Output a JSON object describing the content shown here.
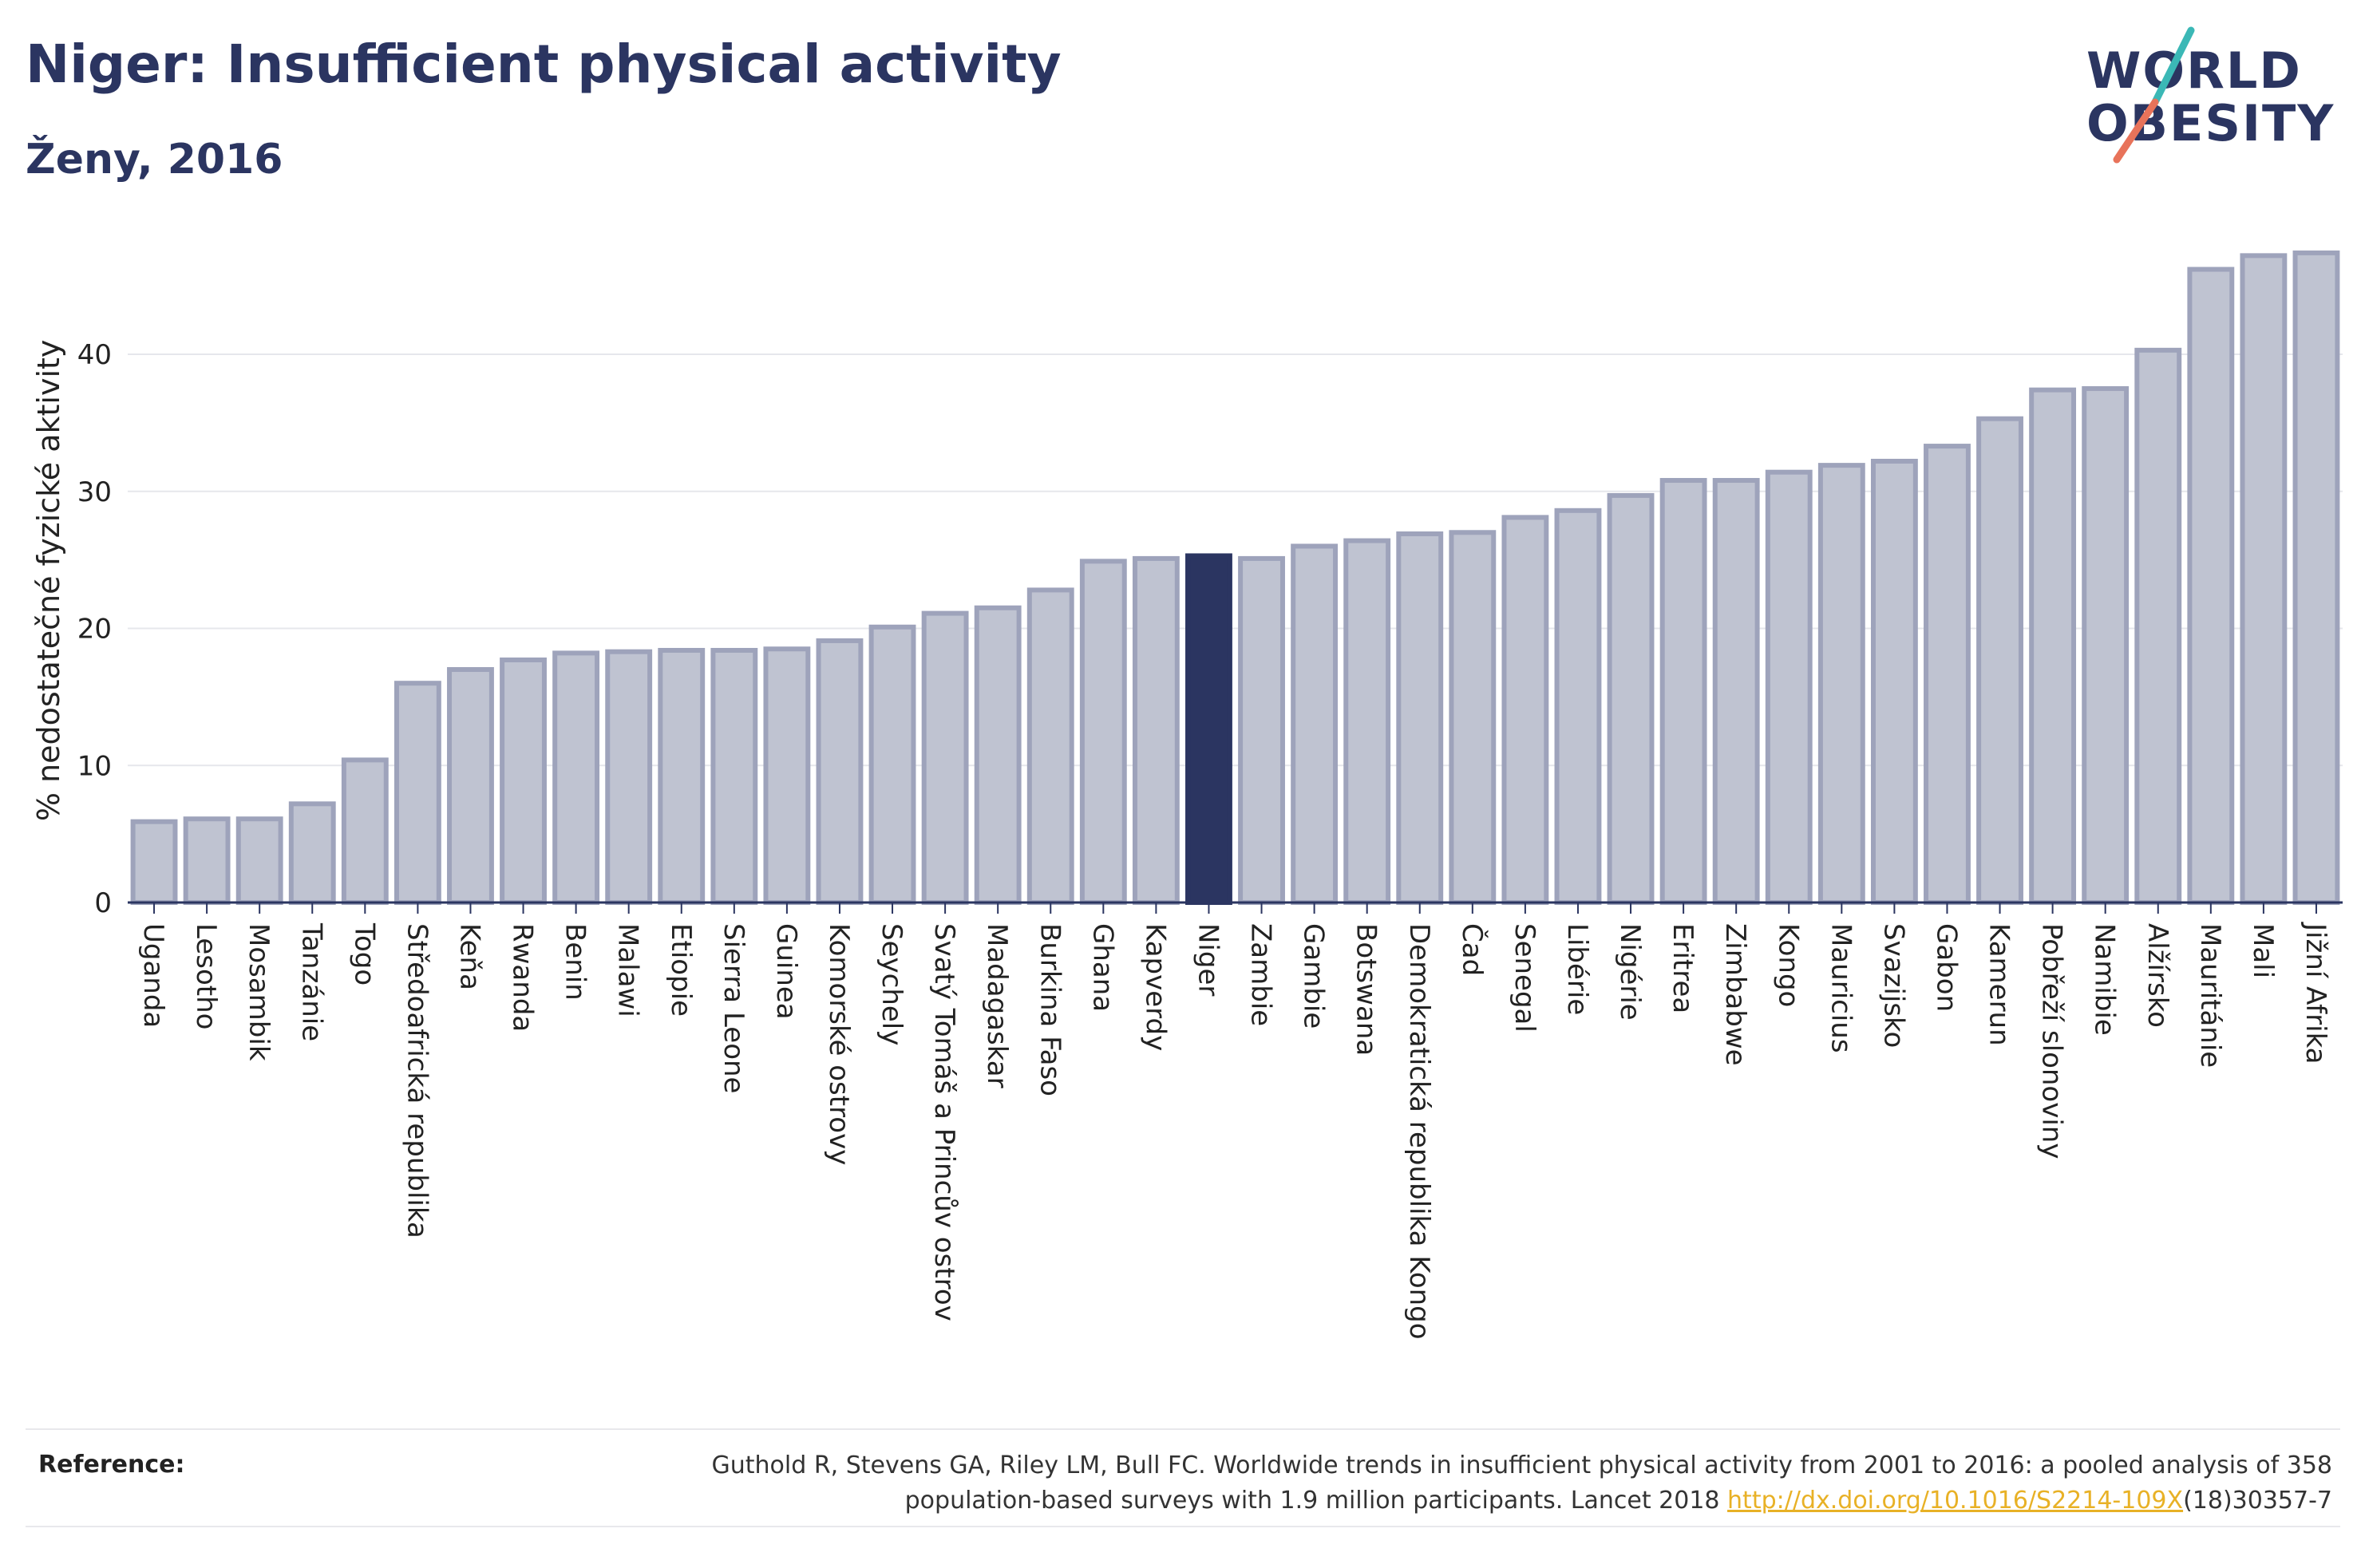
{
  "header": {
    "title": "Niger: Insufficient physical activity",
    "subtitle": "Ženy, 2016"
  },
  "logo": {
    "line1": "WORLD",
    "line2": "OBESITY",
    "colors": {
      "text": "#2b3561",
      "slash_teal": "#3bb8b6",
      "slash_coral": "#e8735a"
    }
  },
  "chart_data": {
    "type": "bar",
    "ylabel": "% nedostatečné fyzické aktivity",
    "xlabel": "",
    "ylim": [
      0,
      48
    ],
    "yticks": [
      0,
      10,
      20,
      30,
      40
    ],
    "grid": true,
    "highlight": "Niger",
    "colors": {
      "bar": "#bfc3d1",
      "bar_edge": "#9ea3bb",
      "highlight": "#2b3561"
    },
    "categories": [
      "Uganda",
      "Lesotho",
      "Mosambik",
      "Tanzánie",
      "Togo",
      "Středoafrická republika",
      "Keňa",
      "Rwanda",
      "Benin",
      "Malawi",
      "Etiopie",
      "Sierra Leone",
      "Guinea",
      "Komorské ostrovy",
      "Seychely",
      "Svatý Tomáš a Princův ostrov",
      "Madagaskar",
      "Burkina Faso",
      "Ghana",
      "Kapverdy",
      "Niger",
      "Zambie",
      "Gambie",
      "Botswana",
      "Demokratická republika Kongo",
      "Čad",
      "Senegal",
      "Libérie",
      "Nigérie",
      "Eritrea",
      "Zimbabwe",
      "Kongo",
      "Mauricius",
      "Svazijsko",
      "Gabon",
      "Kamerun",
      "Pobřeží slonoviny",
      "Namibie",
      "Alžírsko",
      "Mauritánie",
      "Mali",
      "Jižní Afrika"
    ],
    "values": [
      5.9,
      6.1,
      6.1,
      7.2,
      10.4,
      16.0,
      17.0,
      17.7,
      18.2,
      18.3,
      18.4,
      18.4,
      18.5,
      19.1,
      20.1,
      21.1,
      21.5,
      22.8,
      24.9,
      25.1,
      25.3,
      25.1,
      26.0,
      26.4,
      26.9,
      27.0,
      28.1,
      28.6,
      29.7,
      30.8,
      30.8,
      31.4,
      31.9,
      32.2,
      33.3,
      35.3,
      37.4,
      37.5,
      40.3,
      46.2,
      47.2,
      47.4
    ]
  },
  "reference": {
    "label": "Reference:",
    "line1": "Guthold R, Stevens GA, Riley LM, Bull FC. Worldwide trends in insufficient physical activity from 2001 to 2016: a pooled analysis of 358",
    "line2_prefix": "population-based surveys with 1.9 million participants. Lancet 2018 ",
    "link": "http://dx.doi.org/10.1016/S2214-109X",
    "line2_suffix": "(18)30357-7"
  }
}
